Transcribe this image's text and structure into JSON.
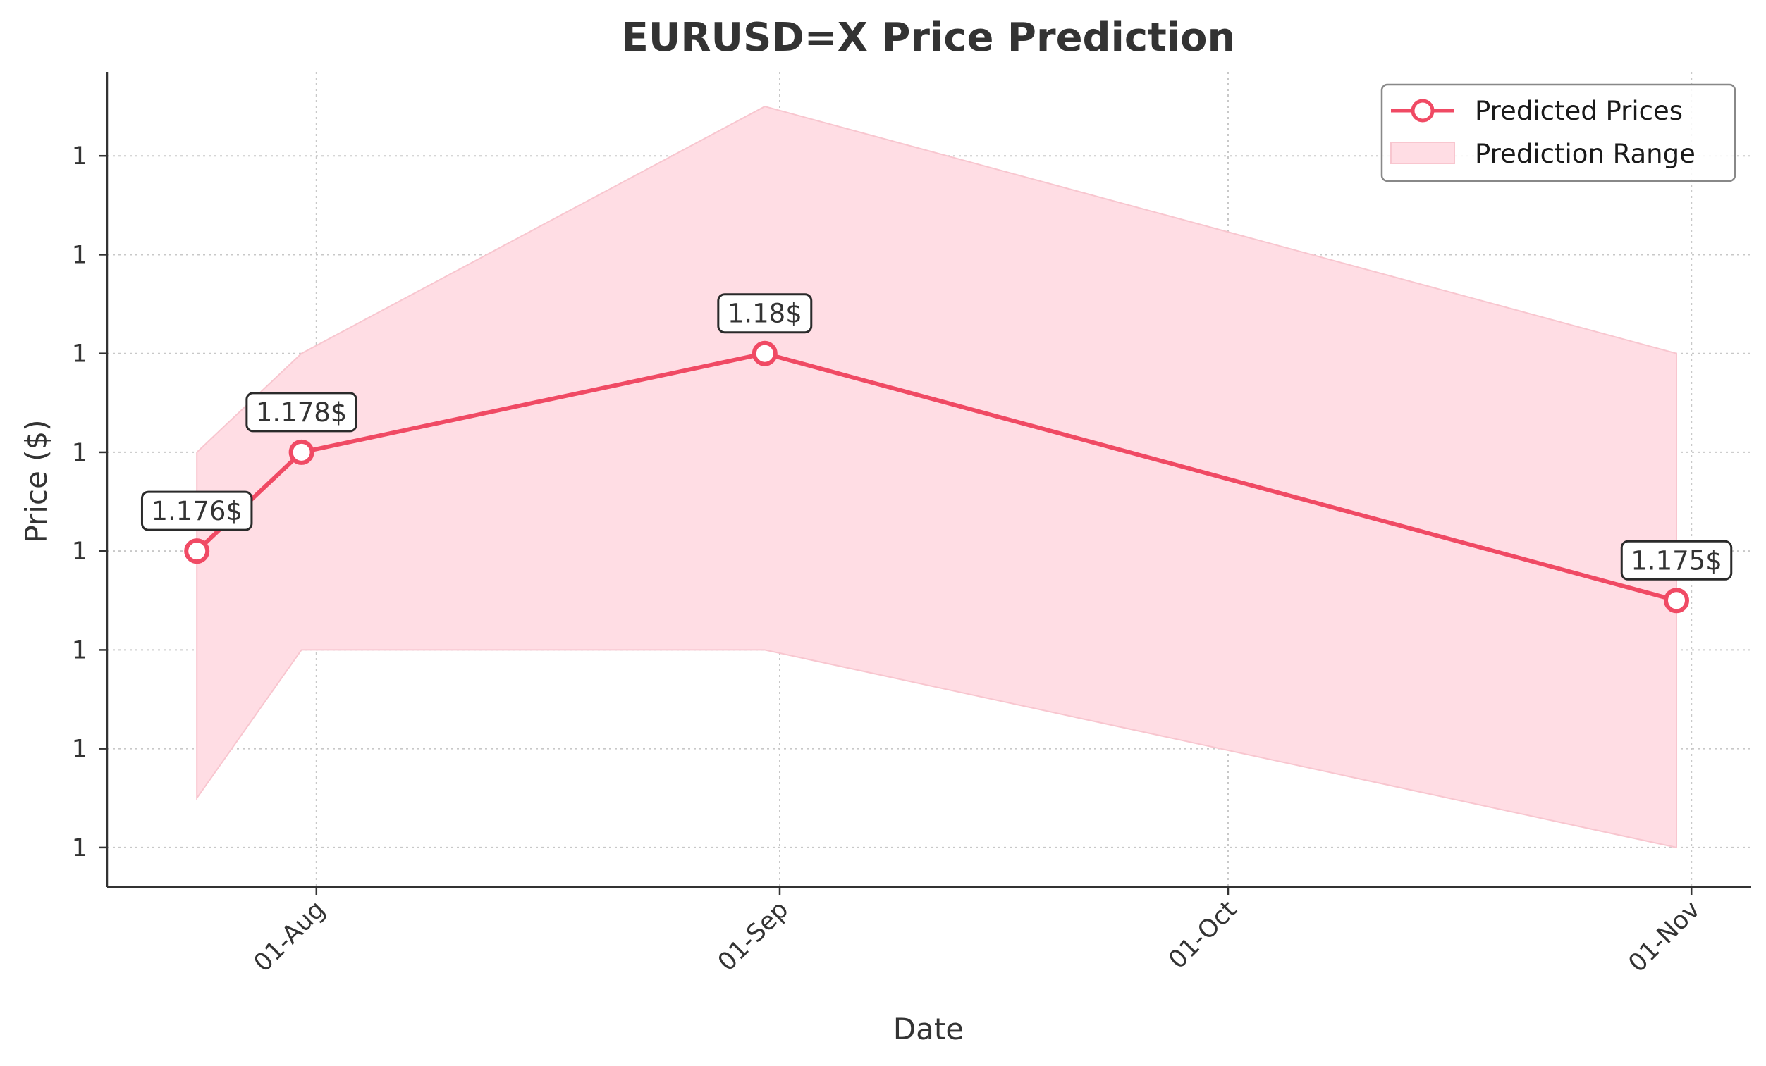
{
  "chart_data": {
    "type": "line",
    "title": "EURUSD=X Price Prediction",
    "xlabel": "Date",
    "ylabel": "Price ($)",
    "x_ticks": [
      "01-Aug",
      "01-Sep",
      "01-Oct",
      "01-Nov"
    ],
    "x_tick_dates": [
      "2025-08-01",
      "2025-09-01",
      "2025-10-01",
      "2025-11-01"
    ],
    "y_ticks": [
      "1",
      "1",
      "1",
      "1",
      "1",
      "1",
      "1",
      "1"
    ],
    "y_tick_values": [
      1.17,
      1.172,
      1.174,
      1.176,
      1.178,
      1.18,
      1.182,
      1.184
    ],
    "xlim": [
      "2025-07-18",
      "2025-11-05"
    ],
    "ylim": [
      1.1692,
      1.1857
    ],
    "grid": true,
    "legend": {
      "position": "top-right",
      "entries": [
        "Predicted Prices",
        "Prediction Range"
      ]
    },
    "colors": {
      "line": "#f04a64",
      "band_fill": "#ffdde4",
      "band_edge": "#f8c6cf"
    },
    "series": [
      {
        "name": "Predicted Prices",
        "points": [
          {
            "x": "2025-07-24",
            "y": 1.176,
            "label": "1.176$"
          },
          {
            "x": "2025-07-31",
            "y": 1.178,
            "label": "1.178$"
          },
          {
            "x": "2025-08-31",
            "y": 1.18,
            "label": "1.18$"
          },
          {
            "x": "2025-10-31",
            "y": 1.175,
            "label": "1.175$"
          }
        ]
      }
    ],
    "range": {
      "name": "Prediction Range",
      "x": [
        "2025-07-24",
        "2025-07-31",
        "2025-08-31",
        "2025-10-31"
      ],
      "low": [
        1.171,
        1.174,
        1.174,
        1.17
      ],
      "high": [
        1.178,
        1.18,
        1.185,
        1.18
      ]
    }
  }
}
